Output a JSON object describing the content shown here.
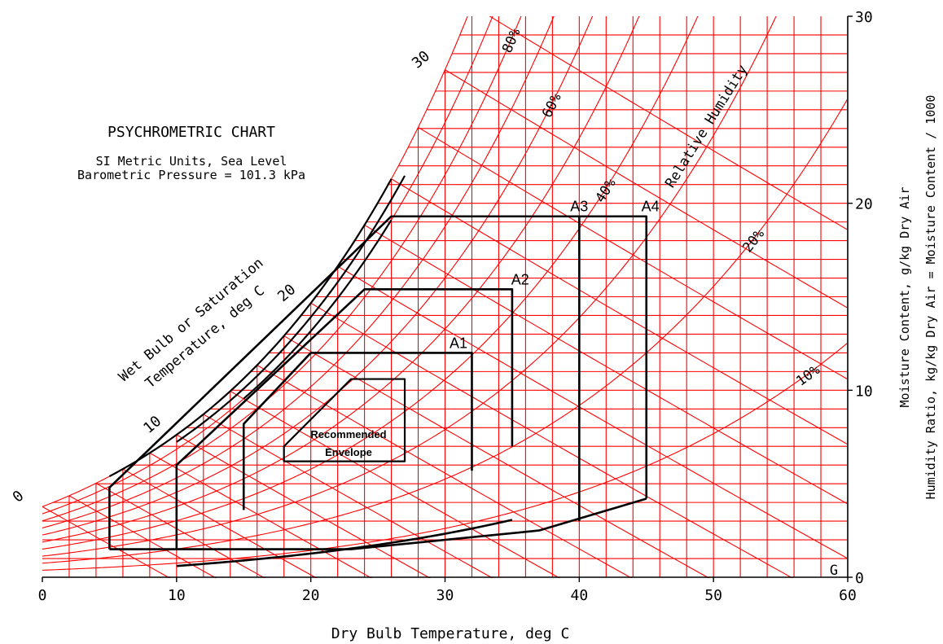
{
  "chart_data": {
    "type": "line",
    "title": "PSYCHROMETRIC CHART",
    "subtitle_lines": [
      "SI Metric Units, Sea Level",
      "Barometric Pressure = 101.3 kPa"
    ],
    "xlabel": "Dry Bulb Temperature, deg C",
    "ylabel_lines": [
      "Moisture Content, g/kg Dry Air",
      "Humidity Ratio, kg/kg Dry Air = Moisture Content / 1000"
    ],
    "xlim": [
      0,
      60
    ],
    "ylim": [
      0,
      30
    ],
    "x_ticks": [
      "0",
      "10",
      "20",
      "30",
      "40",
      "50",
      "60"
    ],
    "y_ticks": [
      "0",
      "10",
      "20",
      "30"
    ],
    "wet_bulb_axis_label_lines": [
      "Wet Bulb or Saturation",
      "Temperature, deg C"
    ],
    "wet_bulb_ticks": [
      {
        "label": "0",
        "t": 0
      },
      {
        "label": "10",
        "t": 10
      },
      {
        "label": "20",
        "t": 20
      },
      {
        "label": "30",
        "t": 30
      }
    ],
    "rh_curve_label": "Relative Humidity",
    "rh_labels": [
      {
        "label": "80%",
        "rh": 0.8,
        "t": 35
      },
      {
        "label": "60%",
        "rh": 0.6,
        "t": 38
      },
      {
        "label": "40%",
        "rh": 0.4,
        "t": 42
      },
      {
        "label": "20%",
        "rh": 0.2,
        "t": 53
      },
      {
        "label": "10%",
        "rh": 0.1,
        "t": 57
      }
    ],
    "corner_mark": "G",
    "classes": [
      {
        "name": "A1",
        "points": [
          [
            15,
            3.6
          ],
          [
            15,
            8.2
          ],
          [
            20,
            12.0
          ],
          [
            32,
            12.0
          ],
          [
            32,
            5.7
          ]
        ]
      },
      {
        "name": "A2",
        "points": [
          [
            10,
            1.5
          ],
          [
            10,
            6.0
          ],
          [
            24,
            15.4
          ],
          [
            35,
            15.4
          ],
          [
            35,
            7.0
          ]
        ]
      },
      {
        "name": "A3",
        "points": [
          [
            40,
            19.3
          ],
          [
            40,
            3.0
          ]
        ]
      },
      {
        "name": "A4",
        "points": [
          [
            5,
            1.5
          ],
          [
            5,
            4.8
          ],
          [
            26,
            19.3
          ],
          [
            45,
            19.3
          ],
          [
            45,
            4.2
          ]
        ]
      }
    ],
    "recommended_envelope": {
      "label_lines": [
        "Recommended",
        "Envelope"
      ],
      "points": [
        [
          18,
          6.2
        ],
        [
          27,
          6.2
        ],
        [
          27,
          10.6
        ],
        [
          23,
          10.6
        ],
        [
          18,
          7.0
        ]
      ]
    }
  }
}
